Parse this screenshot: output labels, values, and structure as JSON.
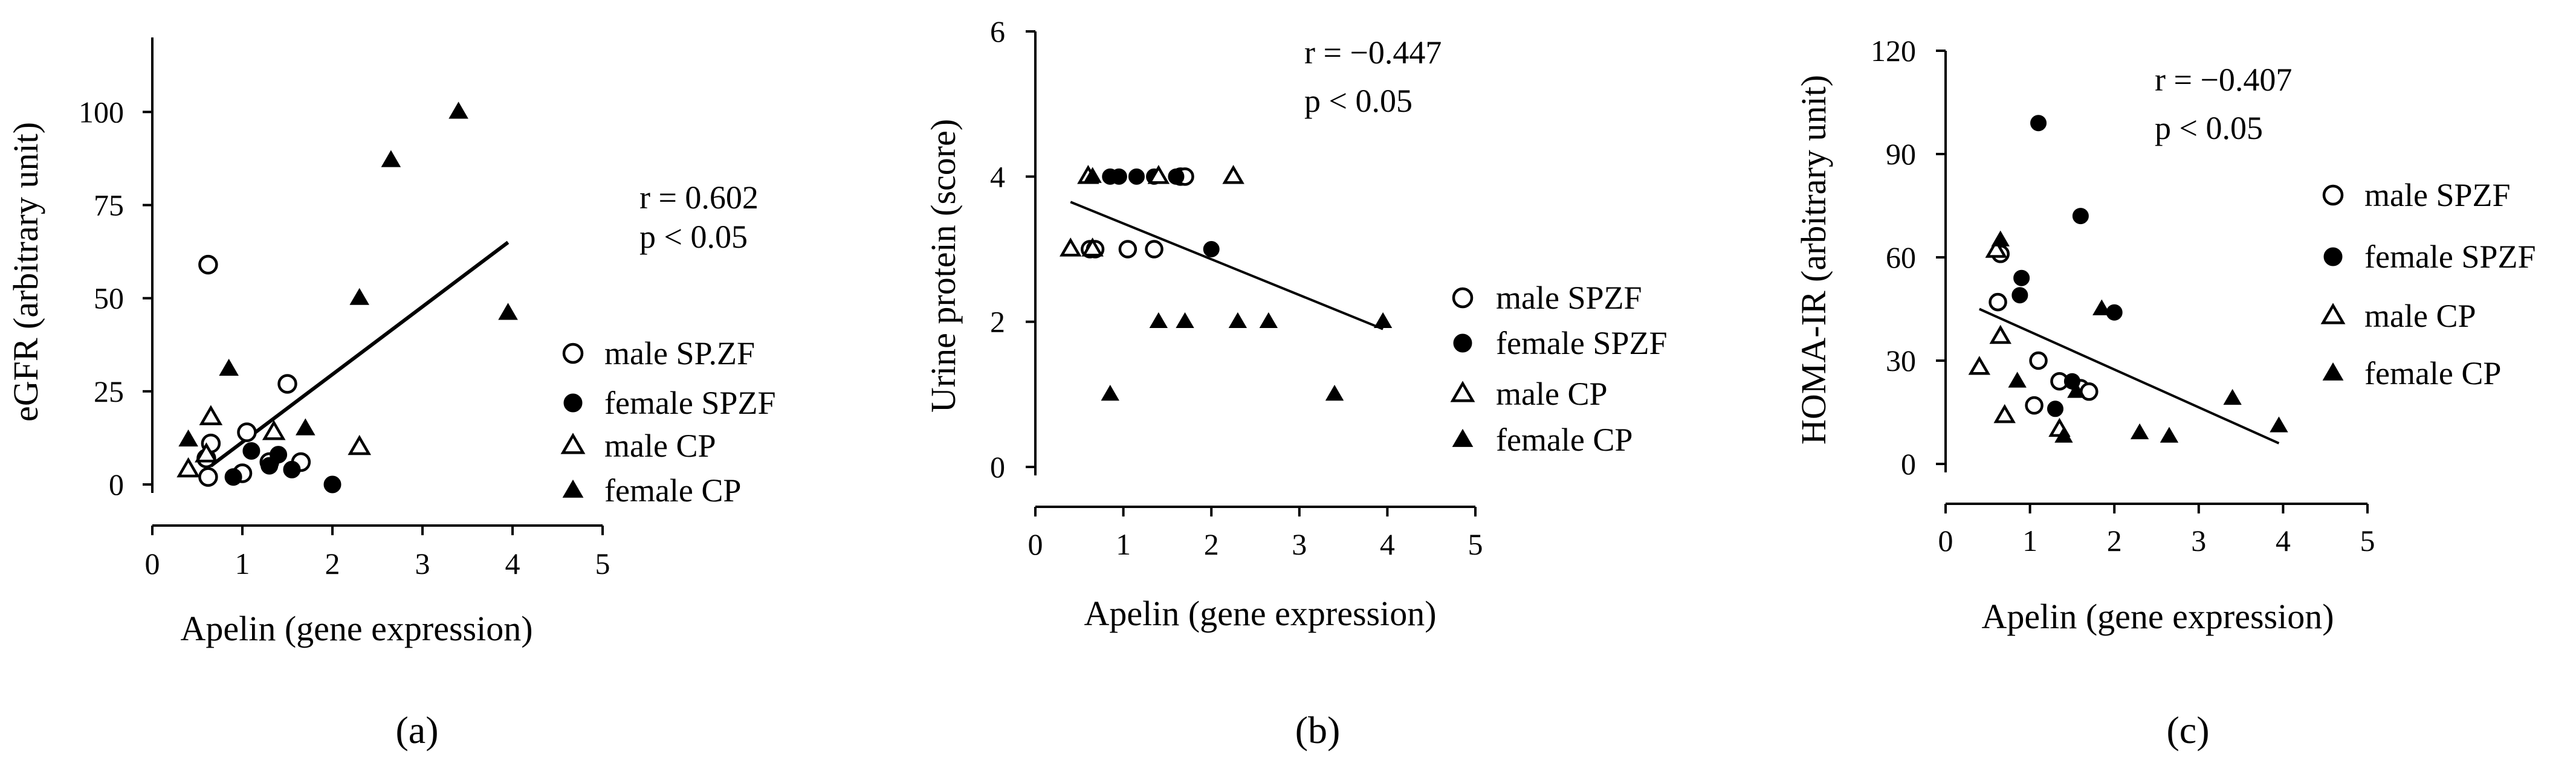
{
  "chart_data": [
    {
      "type": "scatter",
      "panel_label": "(a)",
      "xlabel": "Apelin (gene expression)",
      "ylabel": "eGFR (arbitrary unit)",
      "xlim": [
        0,
        5
      ],
      "ylim": [
        0,
        120
      ],
      "x_ticks": [
        "0",
        "1",
        "2",
        "3",
        "4",
        "5"
      ],
      "y_ticks": [
        "0",
        "25",
        "50",
        "75",
        "100"
      ],
      "stats": {
        "r": "r = 0.602",
        "p": "p < 0.05"
      },
      "legend_placement": "right",
      "series": [
        {
          "name": "male SP.ZF",
          "marker": "open-circle",
          "points": [
            [
              0.62,
              59
            ],
            [
              0.62,
              2
            ],
            [
              0.6,
              7
            ],
            [
              0.65,
              11
            ],
            [
              1.0,
              3
            ],
            [
              1.05,
              14
            ],
            [
              1.3,
              6
            ],
            [
              1.5,
              27
            ],
            [
              1.65,
              6
            ]
          ]
        },
        {
          "name": "female SPZF",
          "marker": "filled-circle",
          "points": [
            [
              0.9,
              2
            ],
            [
              1.1,
              9
            ],
            [
              1.3,
              5
            ],
            [
              1.4,
              8
            ],
            [
              1.55,
              4
            ],
            [
              2.0,
              0
            ]
          ]
        },
        {
          "name": "male CP",
          "marker": "open-triangle",
          "points": [
            [
              0.4,
              4
            ],
            [
              0.65,
              18
            ],
            [
              0.6,
              8
            ],
            [
              1.35,
              14
            ],
            [
              2.3,
              10
            ]
          ]
        },
        {
          "name": "female CP",
          "marker": "filled-triangle",
          "points": [
            [
              0.4,
              12
            ],
            [
              0.85,
              31
            ],
            [
              1.7,
              15
            ],
            [
              2.3,
              50
            ],
            [
              2.65,
              87
            ],
            [
              3.4,
              100
            ],
            [
              3.95,
              46
            ]
          ]
        }
      ],
      "regression": {
        "x": [
          0.65,
          3.95
        ],
        "y": [
          5,
          65
        ]
      }
    },
    {
      "type": "scatter",
      "panel_label": "(b)",
      "xlabel": "Apelin (gene expression)",
      "ylabel": "Urine protein (score)",
      "xlim": [
        0,
        5
      ],
      "ylim": [
        0,
        6
      ],
      "x_ticks": [
        "0",
        "1",
        "2",
        "3",
        "4",
        "5"
      ],
      "y_ticks": [
        "0",
        "2",
        "4",
        "6"
      ],
      "stats": {
        "r": "r = −0.447",
        "p": "p < 0.05"
      },
      "legend_placement": "right",
      "series": [
        {
          "name": "male SPZF",
          "marker": "open-circle",
          "points": [
            [
              0.62,
              3
            ],
            [
              0.68,
              3
            ],
            [
              1.05,
              3
            ],
            [
              1.35,
              3
            ],
            [
              1.65,
              4
            ],
            [
              1.7,
              4
            ]
          ]
        },
        {
          "name": "female SPZF",
          "marker": "filled-circle",
          "points": [
            [
              0.85,
              4
            ],
            [
              0.95,
              4
            ],
            [
              1.15,
              4
            ],
            [
              1.35,
              4
            ],
            [
              1.6,
              4
            ],
            [
              2.0,
              3
            ]
          ]
        },
        {
          "name": "male CP",
          "marker": "open-triangle",
          "points": [
            [
              0.4,
              3
            ],
            [
              0.6,
              4
            ],
            [
              0.65,
              3
            ],
            [
              1.4,
              4
            ],
            [
              2.25,
              4
            ]
          ]
        },
        {
          "name": "female CP",
          "marker": "filled-triangle",
          "points": [
            [
              0.65,
              4
            ],
            [
              0.85,
              1
            ],
            [
              1.4,
              2
            ],
            [
              1.7,
              2
            ],
            [
              2.3,
              2
            ],
            [
              2.65,
              2
            ],
            [
              3.4,
              1
            ],
            [
              3.95,
              2
            ]
          ]
        }
      ],
      "regression": {
        "x": [
          0.4,
          3.95
        ],
        "y": [
          3.65,
          1.9
        ]
      }
    },
    {
      "type": "scatter",
      "panel_label": "(c)",
      "xlabel": "Apelin (gene expression)",
      "ylabel": "HOMA-IR (arbitrary unit)",
      "xlim": [
        0,
        5
      ],
      "ylim": [
        0,
        120
      ],
      "x_ticks": [
        "0",
        "1",
        "2",
        "3",
        "4",
        "5"
      ],
      "y_ticks": [
        "0",
        "30",
        "60",
        "90",
        "120"
      ],
      "stats": {
        "r": "r = −0.407",
        "p": "p < 0.05"
      },
      "legend_placement": "right",
      "series": [
        {
          "name": "male SPZF",
          "marker": "open-circle",
          "points": [
            [
              0.65,
              61
            ],
            [
              0.62,
              47
            ],
            [
              1.05,
              17
            ],
            [
              1.1,
              30
            ],
            [
              1.35,
              24
            ],
            [
              1.6,
              22
            ],
            [
              1.7,
              21
            ]
          ]
        },
        {
          "name": "female SPZF",
          "marker": "filled-circle",
          "points": [
            [
              0.88,
              49
            ],
            [
              0.9,
              54
            ],
            [
              1.1,
              99
            ],
            [
              1.3,
              16
            ],
            [
              1.5,
              24
            ],
            [
              1.6,
              72
            ],
            [
              2.0,
              44
            ]
          ]
        },
        {
          "name": "male CP",
          "marker": "open-triangle",
          "points": [
            [
              0.4,
              28
            ],
            [
              0.65,
              37
            ],
            [
              0.6,
              62
            ],
            [
              0.7,
              14
            ],
            [
              1.35,
              10
            ]
          ]
        },
        {
          "name": "female CP",
          "marker": "filled-triangle",
          "points": [
            [
              0.65,
              65
            ],
            [
              0.85,
              24
            ],
            [
              1.4,
              8
            ],
            [
              1.55,
              21
            ],
            [
              1.85,
              45
            ],
            [
              2.3,
              9
            ],
            [
              2.65,
              8
            ],
            [
              3.4,
              19
            ],
            [
              3.95,
              11
            ]
          ]
        }
      ],
      "regression": {
        "x": [
          0.4,
          3.95
        ],
        "y": [
          45,
          6
        ]
      }
    }
  ]
}
